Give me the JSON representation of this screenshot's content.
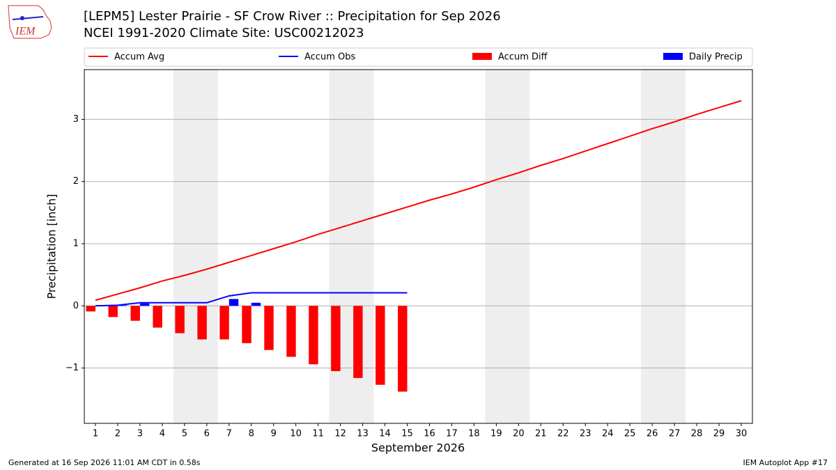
{
  "chart_data": {
    "type": "combo",
    "logo_text": "IEM",
    "title": "[LEPM5] Lester Prairie - SF Crow River :: Precipitation for Sep 2026",
    "subtitle": "NCEI 1991-2020 Climate Site: USC00212023",
    "xlabel": "September 2026",
    "ylabel": "Precipitation [inch]",
    "footer_left": "Generated at 16 Sep 2026 11:01 AM CDT in 0.58s",
    "footer_right": "IEM Autoplot App #17",
    "x": [
      1,
      2,
      3,
      4,
      5,
      6,
      7,
      8,
      9,
      10,
      11,
      12,
      13,
      14,
      15,
      16,
      17,
      18,
      19,
      20,
      21,
      22,
      23,
      24,
      25,
      26,
      27,
      28,
      29,
      30
    ],
    "xlim": [
      0.5,
      30.5
    ],
    "xticks": [
      1,
      2,
      3,
      4,
      5,
      6,
      7,
      8,
      9,
      10,
      11,
      12,
      13,
      14,
      15,
      16,
      17,
      18,
      19,
      20,
      21,
      22,
      23,
      24,
      25,
      26,
      27,
      28,
      29,
      30
    ],
    "ylim": [
      -1.89,
      3.8
    ],
    "yticks": [
      {
        "value": -1,
        "label": "−1"
      },
      0,
      1,
      2,
      3
    ],
    "grid": true,
    "weekend_spans": [
      [
        4.5,
        6.5
      ],
      [
        11.5,
        13.5
      ],
      [
        18.5,
        20.5
      ],
      [
        25.5,
        27.5
      ]
    ],
    "series": [
      {
        "name": "Accum Avg",
        "type": "line",
        "color": "#ff0000",
        "values": [
          0.09,
          0.19,
          0.29,
          0.4,
          0.49,
          0.59,
          0.7,
          0.81,
          0.92,
          1.03,
          1.15,
          1.26,
          1.37,
          1.48,
          1.59,
          1.7,
          1.8,
          1.91,
          2.03,
          2.14,
          2.26,
          2.37,
          2.49,
          2.61,
          2.73,
          2.85,
          2.96,
          3.08,
          3.19,
          3.3
        ]
      },
      {
        "name": "Accum Obs",
        "type": "line",
        "color": "#0000ff",
        "values": [
          0,
          0.01,
          0.05,
          0.05,
          0.05,
          0.05,
          0.16,
          0.21,
          0.21,
          0.21,
          0.21,
          0.21,
          0.21,
          0.21,
          0.21,
          null,
          null,
          null,
          null,
          null,
          null,
          null,
          null,
          null,
          null,
          null,
          null,
          null,
          null,
          null
        ]
      },
      {
        "name": "Accum Diff",
        "type": "bar",
        "side": "left",
        "color": "#ff0000",
        "values": [
          -0.09,
          -0.18,
          -0.24,
          -0.35,
          -0.44,
          -0.54,
          -0.54,
          -0.6,
          -0.71,
          -0.82,
          -0.94,
          -1.05,
          -1.16,
          -1.27,
          -1.38,
          null,
          null,
          null,
          null,
          null,
          null,
          null,
          null,
          null,
          null,
          null,
          null,
          null,
          null,
          null
        ]
      },
      {
        "name": "Daily Precip",
        "type": "bar",
        "side": "right",
        "color": "#0000ff",
        "values": [
          0,
          0.01,
          0.04,
          0,
          0,
          0,
          0.11,
          0.05,
          0,
          0,
          0,
          0,
          0,
          0,
          0,
          null,
          null,
          null,
          null,
          null,
          null,
          null,
          null,
          null,
          null,
          null,
          null,
          null,
          null,
          null
        ]
      }
    ]
  }
}
